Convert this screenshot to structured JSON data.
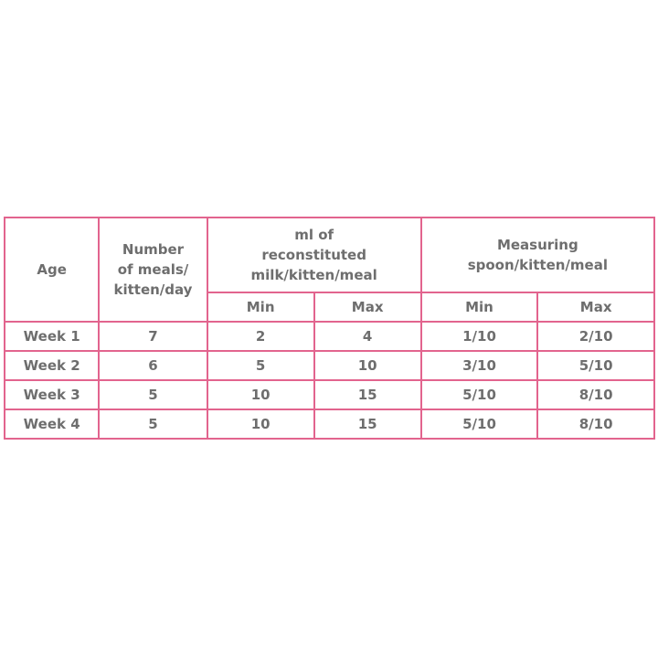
{
  "table": {
    "headers": {
      "age": "Age",
      "meals": "Number of meals/ kitten/day",
      "ml": "ml of reconstituted milk/kitten/meal",
      "spoon": "Measuring spoon/kitten/meal",
      "ml_min": "Min",
      "ml_max": "Max",
      "spoon_min": "Min",
      "spoon_max": "Max"
    },
    "rows": [
      [
        "Week 1",
        "7",
        "2",
        "4",
        "1/10",
        "2/10"
      ],
      [
        "Week 2",
        "6",
        "5",
        "10",
        "3/10",
        "5/10"
      ],
      [
        "Week 3",
        "5",
        "10",
        "15",
        "5/10",
        "8/10"
      ],
      [
        "Week 4",
        "5",
        "10",
        "15",
        "5/10",
        "8/10"
      ]
    ]
  },
  "colors": {
    "border": "#e2648e",
    "text": "#6e6e6e"
  }
}
